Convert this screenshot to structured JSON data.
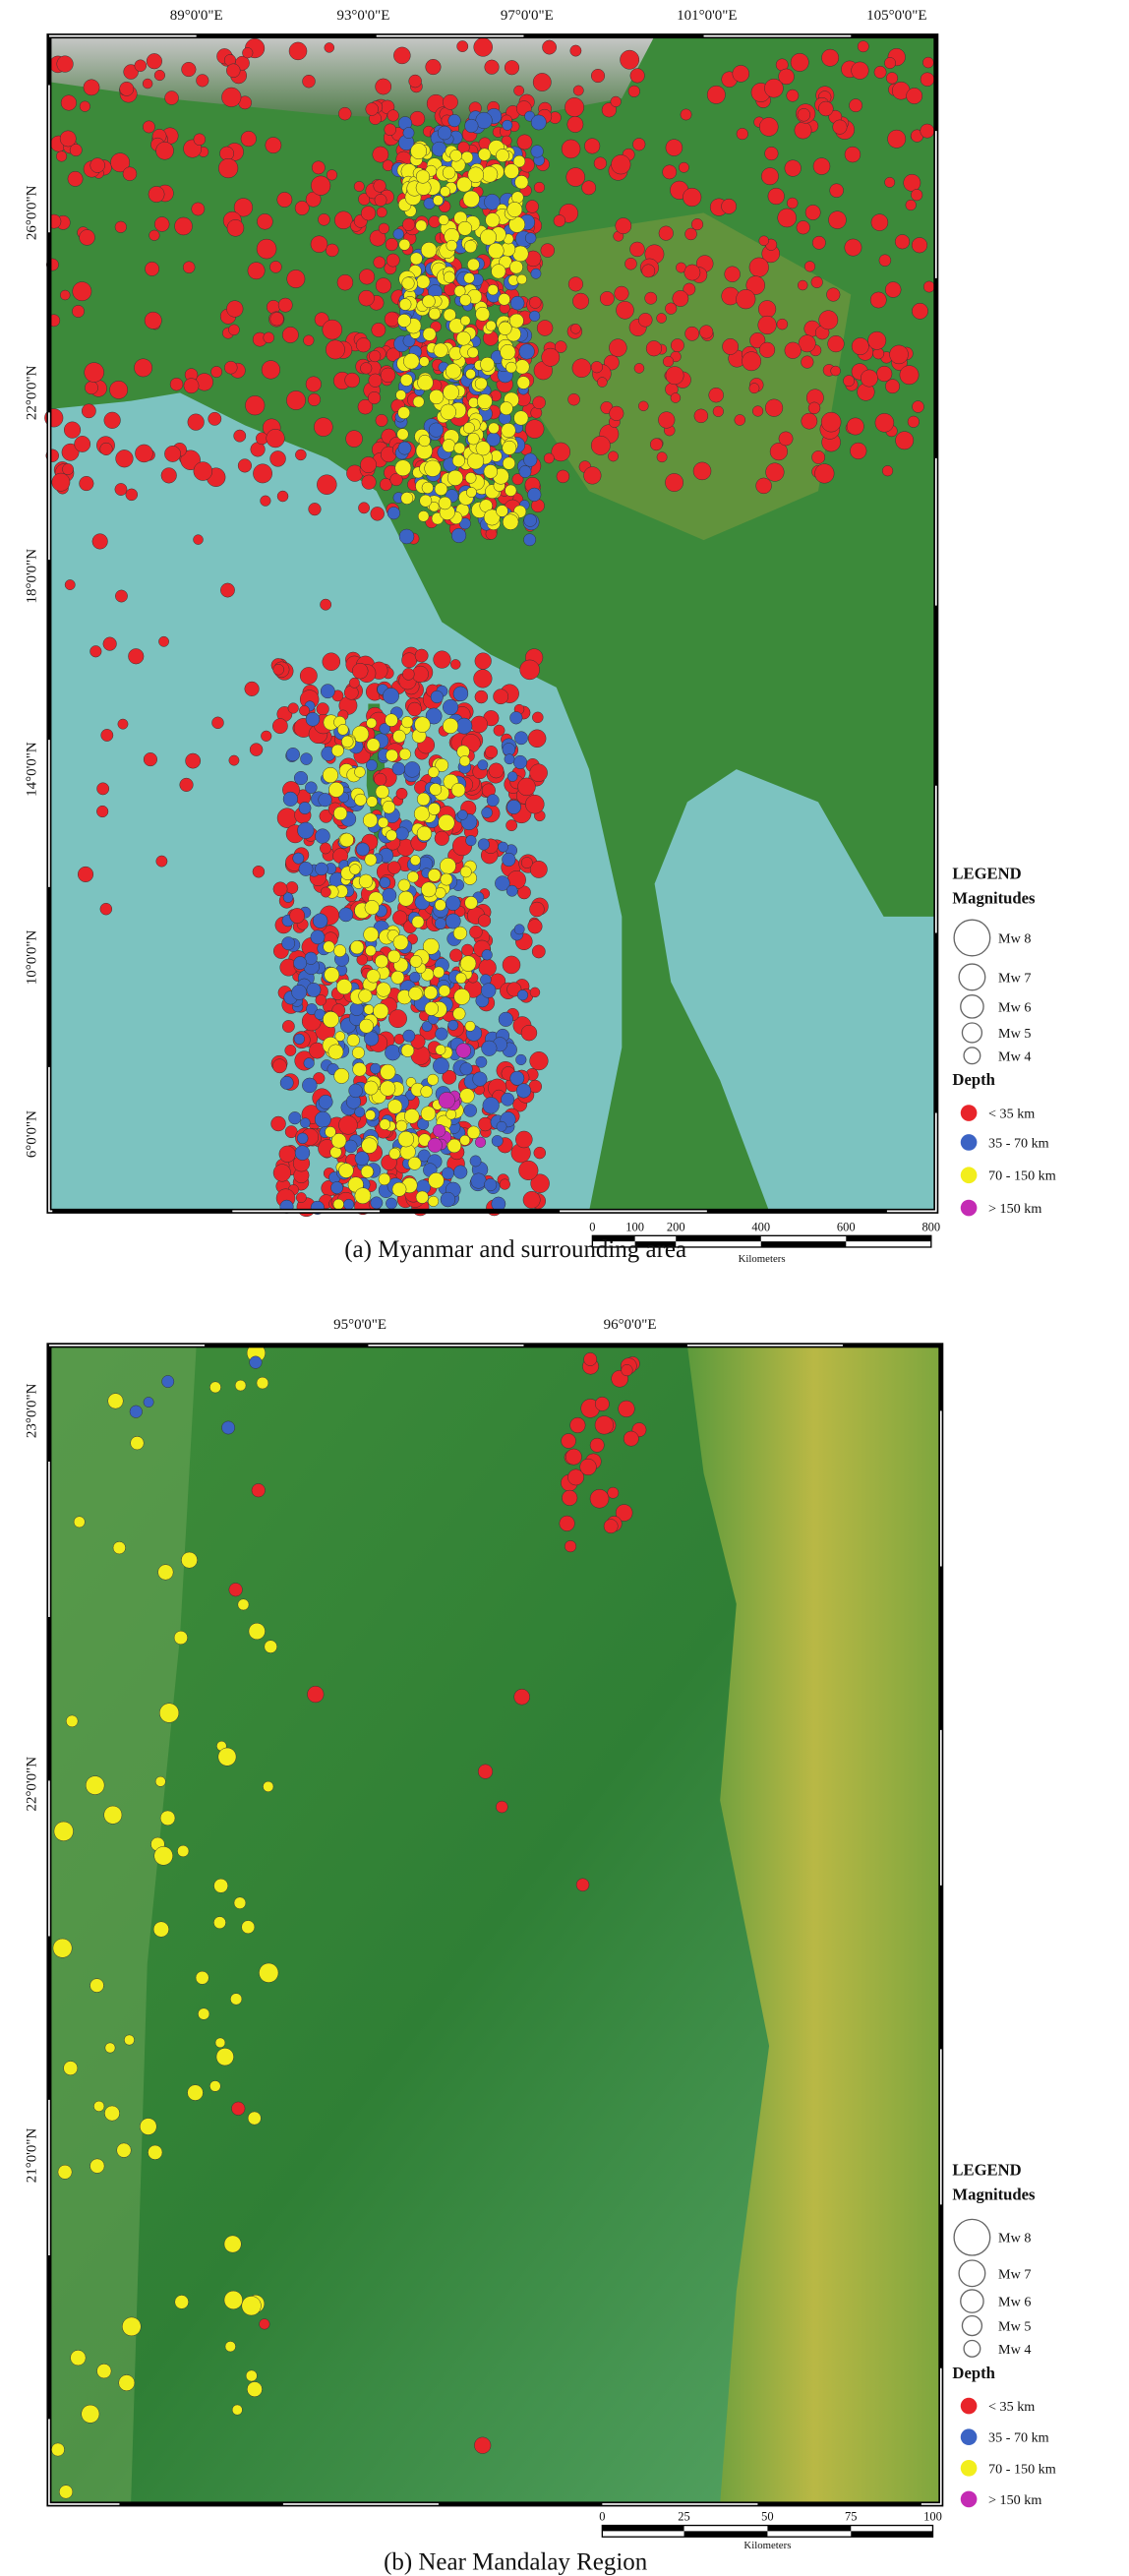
{
  "panels": [
    {
      "lon_labels": [
        "89°0'0\"E",
        "93°0'0\"E",
        "97°0'0\"E",
        "101°0'0\"E",
        "105°0'0\"E"
      ],
      "lat_labels": [
        "26°0'0\"N",
        "22°0'0\"N",
        "18°0'0\"N",
        "14°0'0\"N",
        "10°0'0\"N",
        "6°0'0\"N"
      ],
      "legend": {
        "title": "LEGEND",
        "magnitudes_title": "Magnitudes",
        "magnitudes": [
          "Mw 8",
          "Mw 7",
          "Mw 6",
          "Mw 5",
          "Mw 4"
        ],
        "depth_title": "Depth",
        "depths": [
          "< 35 km",
          "35 - 70 km",
          "70 - 150 km",
          "> 150 km"
        ]
      },
      "scale_labels": [
        "0",
        "100",
        "200",
        "400",
        "600",
        "800"
      ],
      "scale_unit": "Kilometers",
      "caption": "(a) Myanmar and surrounding area"
    },
    {
      "lon_labels": [
        "95°0'0\"E",
        "96°0'0\"E"
      ],
      "lat_labels": [
        "23°0'0\"N",
        "22°0'0\"N",
        "21°0'0\"N"
      ],
      "legend": {
        "title": "LEGEND",
        "magnitudes_title": "Magnitudes",
        "magnitudes": [
          "Mw 8",
          "Mw 7",
          "Mw 6",
          "Mw 5",
          "Mw 4"
        ],
        "depth_title": "Depth",
        "depths": [
          "< 35 km",
          "35 - 70 km",
          "70 - 150 km",
          "> 150 km"
        ]
      },
      "scale_labels": [
        "0",
        "25",
        "50",
        "75",
        "100"
      ],
      "scale_unit": "Kilometers",
      "caption": "(b) Near Mandalay Region"
    }
  ]
}
